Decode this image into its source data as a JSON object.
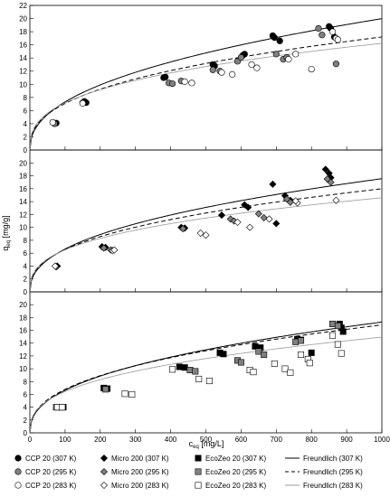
{
  "chart_data": [
    {
      "type": "scatter",
      "panel": "top",
      "xlim": [
        0,
        1000
      ],
      "ylim": [
        0,
        22
      ],
      "y_ticks": [
        0,
        2,
        4,
        6,
        8,
        10,
        12,
        14,
        16,
        18,
        20,
        22
      ],
      "series": [
        {
          "name": "CCP 20 (307 K)",
          "marker": "circle",
          "fill": "#000000",
          "points": [
            [
              75,
              4.1
            ],
            [
              155,
              7.4
            ],
            [
              160,
              7.2
            ],
            [
              380,
              11.0
            ],
            [
              385,
              11.1
            ],
            [
              520,
              13.0
            ],
            [
              525,
              12.8
            ],
            [
              605,
              14.4
            ],
            [
              610,
              14.6
            ],
            [
              690,
              17.4
            ],
            [
              695,
              17.1
            ],
            [
              710,
              16.6
            ],
            [
              850,
              18.8
            ],
            [
              855,
              18.5
            ],
            [
              865,
              17.2
            ]
          ]
        },
        {
          "name": "CCP 20 (295 K)",
          "marker": "circle",
          "fill": "#808080",
          "points": [
            [
              70,
              4.0
            ],
            [
              150,
              7.2
            ],
            [
              395,
              10.2
            ],
            [
              405,
              10.1
            ],
            [
              430,
              10.5
            ],
            [
              520,
              12.2
            ],
            [
              540,
              12.0
            ],
            [
              590,
              13.5
            ],
            [
              600,
              14.1
            ],
            [
              700,
              14.6
            ],
            [
              720,
              13.8
            ],
            [
              730,
              14.1
            ],
            [
              820,
              18.5
            ],
            [
              830,
              17.5
            ],
            [
              870,
              13.1
            ]
          ]
        },
        {
          "name": "CCP 20 (283 K)",
          "marker": "circle",
          "fill": "#ffffff",
          "points": [
            [
              65,
              4.2
            ],
            [
              150,
              7.1
            ],
            [
              440,
              10.4
            ],
            [
              460,
              10.2
            ],
            [
              545,
              11.8
            ],
            [
              575,
              11.5
            ],
            [
              630,
              13.0
            ],
            [
              645,
              12.5
            ],
            [
              735,
              13.8
            ],
            [
              755,
              14.6
            ],
            [
              800,
              12.3
            ],
            [
              860,
              18.0
            ],
            [
              870,
              17.0
            ],
            [
              875,
              16.8
            ]
          ]
        },
        {
          "name": "Freundlich (307 K)",
          "line": "solid",
          "color": "#000000",
          "kf": 0.98,
          "n": 0.4365
        },
        {
          "name": "Freundlich (295 K)",
          "line": "dashed",
          "color": "#000000",
          "kf": 1.2,
          "n": 0.3854
        },
        {
          "name": "Freundlich (283 K)",
          "line": "solid",
          "color": "#999999",
          "kf": 1.4,
          "n": 0.3548
        }
      ]
    },
    {
      "type": "scatter",
      "panel": "middle",
      "ylabel": "q_eq [mg/g]",
      "xlim": [
        0,
        1000
      ],
      "ylim": [
        0,
        22
      ],
      "y_ticks": [
        0,
        2,
        4,
        6,
        8,
        10,
        12,
        14,
        16,
        18,
        20
      ],
      "series": [
        {
          "name": "Micro 200 (307 K)",
          "marker": "diamond",
          "fill": "#000000",
          "points": [
            [
              78,
              4.0
            ],
            [
              205,
              7.0
            ],
            [
              215,
              6.9
            ],
            [
              430,
              10.0
            ],
            [
              440,
              9.9
            ],
            [
              545,
              11.9
            ],
            [
              610,
              13.5
            ],
            [
              620,
              13.1
            ],
            [
              690,
              16.7
            ],
            [
              700,
              10.6
            ],
            [
              725,
              14.9
            ],
            [
              740,
              14.2
            ],
            [
              840,
              19.0
            ],
            [
              850,
              18.4
            ],
            [
              855,
              17.7
            ]
          ]
        },
        {
          "name": "Micro 200 (295 K)",
          "marker": "diamond",
          "fill": "#808080",
          "points": [
            [
              75,
              3.9
            ],
            [
              210,
              6.8
            ],
            [
              230,
              6.5
            ],
            [
              435,
              9.8
            ],
            [
              570,
              11.3
            ],
            [
              580,
              11.0
            ],
            [
              650,
              12.1
            ],
            [
              665,
              11.5
            ],
            [
              730,
              14.4
            ],
            [
              740,
              13.9
            ],
            [
              845,
              17.5
            ],
            [
              855,
              17.0
            ]
          ]
        },
        {
          "name": "Micro 200 (283 K)",
          "marker": "diamond",
          "fill": "#ffffff",
          "points": [
            [
              72,
              4.0
            ],
            [
              235,
              6.4
            ],
            [
              240,
              6.5
            ],
            [
              485,
              9.1
            ],
            [
              500,
              8.8
            ],
            [
              590,
              10.8
            ],
            [
              625,
              10.0
            ],
            [
              680,
              11.3
            ],
            [
              760,
              13.8
            ],
            [
              755,
              14.1
            ],
            [
              870,
              14.2
            ]
          ]
        },
        {
          "name": "Freundlich (307 K)",
          "line": "solid",
          "color": "#000000",
          "kf": 0.95,
          "n": 0.4222
        },
        {
          "name": "Freundlich (295 K)",
          "line": "dashed",
          "color": "#000000",
          "kf": 1.1,
          "n": 0.3875
        },
        {
          "name": "Freundlich (283 K)",
          "line": "solid",
          "color": "#999999",
          "kf": 1.3,
          "n": 0.35
        }
      ]
    },
    {
      "type": "scatter",
      "panel": "bottom",
      "xlabel": "c_eq [mg/L]",
      "xlim": [
        0,
        1000
      ],
      "ylim": [
        0,
        22
      ],
      "x_ticks": [
        0,
        100,
        200,
        300,
        400,
        500,
        600,
        700,
        800,
        900,
        1000
      ],
      "y_ticks": [
        0,
        2,
        4,
        6,
        8,
        10,
        12,
        14,
        16,
        18,
        20
      ],
      "series": [
        {
          "name": "EcoZeo 20 (307 K)",
          "marker": "square",
          "fill": "#000000",
          "points": [
            [
              80,
              4.0
            ],
            [
              95,
              4.0
            ],
            [
              210,
              7.0
            ],
            [
              220,
              6.9
            ],
            [
              425,
              10.3
            ],
            [
              440,
              10.2
            ],
            [
              540,
              12.5
            ],
            [
              550,
              12.3
            ],
            [
              640,
              13.5
            ],
            [
              655,
              13.3
            ],
            [
              760,
              14.6
            ],
            [
              770,
              14.5
            ],
            [
              800,
              12.5
            ],
            [
              880,
              17.0
            ],
            [
              885,
              16.4
            ],
            [
              890,
              15.8
            ]
          ]
        },
        {
          "name": "EcoZeo 20 (295 K)",
          "marker": "square",
          "fill": "#808080",
          "points": [
            [
              75,
              4.0
            ],
            [
              90,
              4.0
            ],
            [
              215,
              6.8
            ],
            [
              455,
              9.8
            ],
            [
              470,
              9.6
            ],
            [
              590,
              11.3
            ],
            [
              600,
              11.0
            ],
            [
              650,
              12.7
            ],
            [
              665,
              12.2
            ],
            [
              755,
              14.2
            ],
            [
              770,
              14.4
            ],
            [
              860,
              17.0
            ],
            [
              875,
              16.7
            ]
          ]
        },
        {
          "name": "EcoZeo 20 (283 K)",
          "marker": "square",
          "fill": "#ffffff",
          "points": [
            [
              78,
              4.0
            ],
            [
              92,
              4.0
            ],
            [
              270,
              6.1
            ],
            [
              290,
              6.0
            ],
            [
              405,
              9.9
            ],
            [
              480,
              8.4
            ],
            [
              510,
              8.1
            ],
            [
              625,
              9.8
            ],
            [
              635,
              9.5
            ],
            [
              695,
              10.8
            ],
            [
              725,
              10.0
            ],
            [
              740,
              9.4
            ],
            [
              770,
              12.2
            ],
            [
              790,
              11.5
            ],
            [
              795,
              10.9
            ],
            [
              860,
              15.2
            ],
            [
              875,
              13.8
            ],
            [
              885,
              12.4
            ]
          ]
        },
        {
          "name": "Freundlich (307 K)",
          "line": "solid",
          "color": "#000000",
          "kf": 0.98,
          "n": 0.4155
        },
        {
          "name": "Freundlich (295 K)",
          "line": "dashed",
          "color": "#000000",
          "kf": 1.1,
          "n": 0.395
        },
        {
          "name": "Freundlich (283 K)",
          "line": "solid",
          "color": "#999999",
          "kf": 1.2,
          "n": 0.365
        }
      ]
    }
  ],
  "legend": {
    "placement": "bottom",
    "rows": [
      [
        "CCP 20 (307 K)",
        "Micro 200 (307 K)",
        "EcoZeo 20  (307 K)",
        "Freundlich (307 K)"
      ],
      [
        "CCP 20 (295 K)",
        "Micro 200 (295 K)",
        "EcoZeo 20  (295 K)",
        "Freundlich (295 K)"
      ],
      [
        "CCP 20 (283 K)",
        "Micro 200 (283 K)",
        "EcoZeo 20  (283 K)",
        "Freundlich (283 K)"
      ]
    ]
  },
  "axes": {
    "ylabel_main": "q",
    "ylabel_sub": "eq",
    "ylabel_unit": " [mg/g]",
    "xlabel_main": "c",
    "xlabel_sub": "eq",
    "xlabel_unit": " [mg/L]"
  }
}
